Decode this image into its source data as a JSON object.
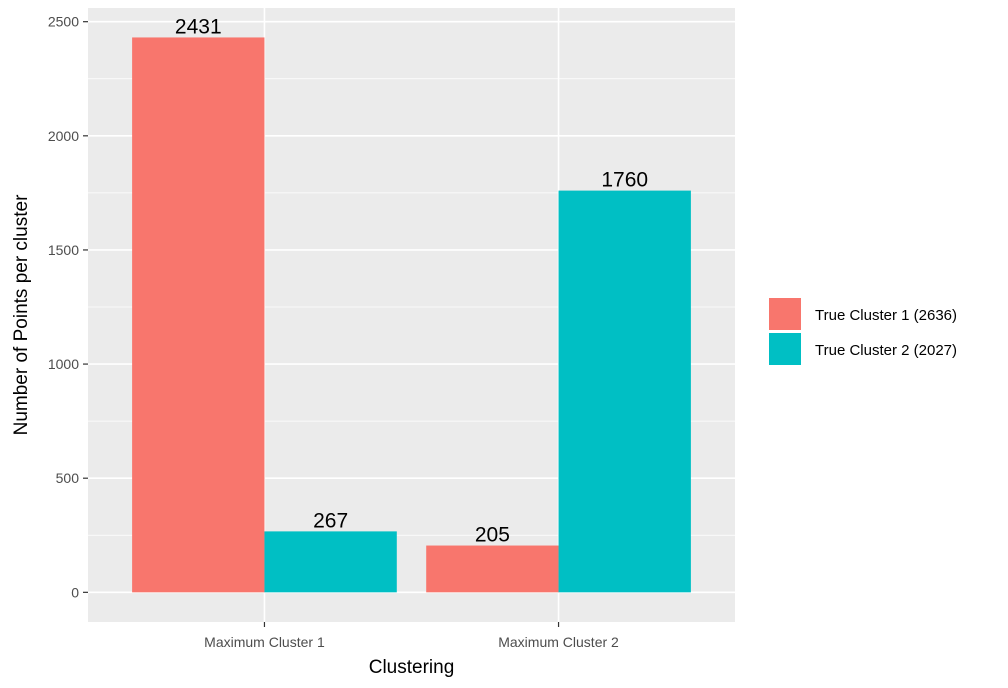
{
  "chart_data": {
    "type": "bar",
    "title": "",
    "xlabel": "Clustering",
    "ylabel": "Number of Points per cluster",
    "categories": [
      "Maximum Cluster 1",
      "Maximum Cluster 2"
    ],
    "series": [
      {
        "name": "True Cluster 1 (2636)",
        "color": "#F8766D",
        "values": [
          2431,
          205
        ]
      },
      {
        "name": "True Cluster 2 (2027)",
        "color": "#00BFC4",
        "values": [
          267,
          1760
        ]
      }
    ],
    "data_labels": [
      [
        "2431",
        "205"
      ],
      [
        "267",
        "1760"
      ]
    ],
    "y_ticks": [
      0,
      500,
      1000,
      1500,
      2000,
      2500
    ],
    "y_tick_labels": [
      "0",
      "500",
      "1000",
      "1500",
      "2000",
      "2500"
    ],
    "ylim": [
      -130,
      2560
    ],
    "grid": true,
    "legend_position": "right",
    "panel_background": "#EBEBEB"
  }
}
